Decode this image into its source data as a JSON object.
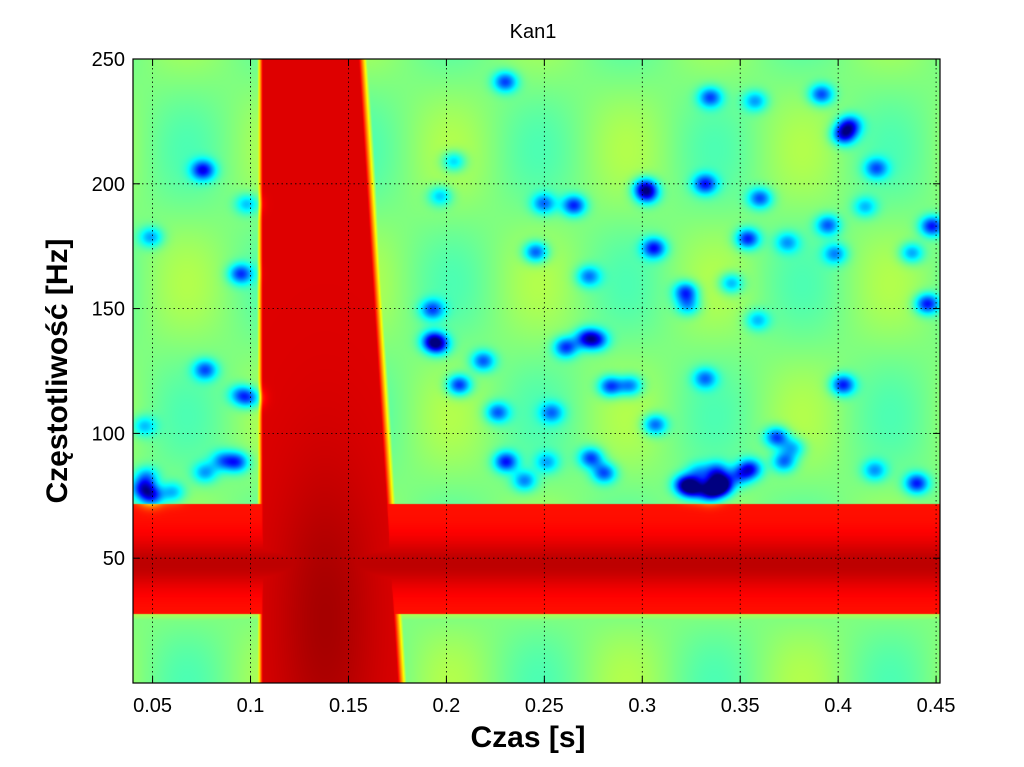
{
  "chart_data": {
    "type": "heatmap",
    "title": "Kan1",
    "xlabel": "Czas [s]",
    "ylabel": "Częstotliwość [Hz]",
    "xlim": [
      0.04,
      0.452
    ],
    "ylim": [
      0,
      250
    ],
    "xticks": [
      0.05,
      0.1,
      0.15,
      0.2,
      0.25,
      0.3,
      0.35,
      0.4,
      0.45
    ],
    "xtick_labels": [
      "0.05",
      "0.1",
      "0.15",
      "0.2",
      "0.25",
      "0.3",
      "0.35",
      "0.4",
      "0.45"
    ],
    "yticks": [
      50,
      100,
      150,
      200,
      250
    ],
    "ytick_labels": [
      "50",
      "100",
      "150",
      "200",
      "250"
    ],
    "grid": true,
    "grid_style": "dotted",
    "colormap": "jet",
    "features": {
      "power_band_hz": [
        28,
        72
      ],
      "power_band_center_hz": 48,
      "burst_time_s": [
        0.1,
        0.185
      ],
      "burst_peak_time_s": 0.138,
      "burst_peak_freq_hz": 25
    }
  }
}
